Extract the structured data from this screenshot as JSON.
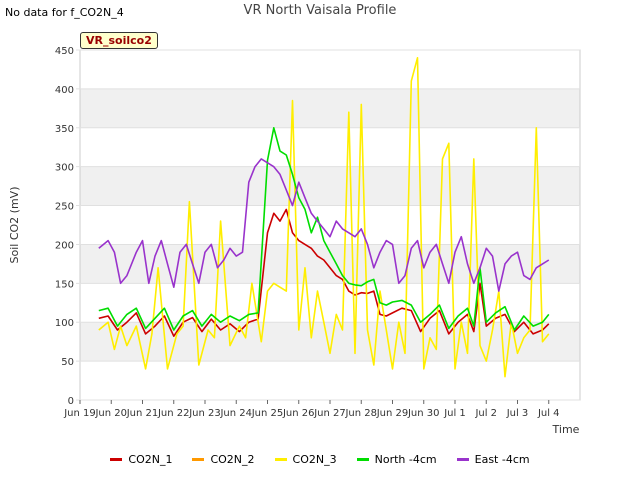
{
  "header": {
    "no_data_text": "No data for f_CO2N_4",
    "title": "VR North Vaisala Profile",
    "badge": "VR_soilco2"
  },
  "chart_data": {
    "type": "line",
    "title": "VR North Vaisala Profile",
    "xlabel": "Time",
    "ylabel": "Soil CO2 (mV)",
    "ylim": [
      0,
      450
    ],
    "xlim": [
      0,
      16
    ],
    "x_unit": "days since Jun 19",
    "grid": true,
    "legend_placement": "bottom",
    "yticks": [
      0,
      50,
      100,
      150,
      200,
      250,
      300,
      350,
      400,
      450
    ],
    "xticks": [
      {
        "x": 0,
        "label": "Jun 19"
      },
      {
        "x": 1,
        "label": "Jun 20"
      },
      {
        "x": 2,
        "label": "Jun 21"
      },
      {
        "x": 3,
        "label": "Jun 22"
      },
      {
        "x": 4,
        "label": "Jun 23"
      },
      {
        "x": 5,
        "label": "Jun 24"
      },
      {
        "x": 6,
        "label": "Jun 25"
      },
      {
        "x": 7,
        "label": "Jun 26"
      },
      {
        "x": 8,
        "label": "Jun 27"
      },
      {
        "x": 9,
        "label": "Jun 28"
      },
      {
        "x": 10,
        "label": "Jun 29"
      },
      {
        "x": 11,
        "label": "Jun 30"
      },
      {
        "x": 12,
        "label": "Jul 1"
      },
      {
        "x": 13,
        "label": "Jul 2"
      },
      {
        "x": 14,
        "label": "Jul 3"
      },
      {
        "x": 15,
        "label": "Jul 4"
      }
    ],
    "series": [
      {
        "name": "CO2N_1",
        "color": "#cc0000",
        "x": [
          0.6,
          0.9,
          1.2,
          1.5,
          1.8,
          2.1,
          2.4,
          2.7,
          3.0,
          3.3,
          3.6,
          3.9,
          4.2,
          4.5,
          4.8,
          5.1,
          5.4,
          5.7,
          6.0,
          6.2,
          6.4,
          6.6,
          6.8,
          7.0,
          7.2,
          7.4,
          7.6,
          7.8,
          8.0,
          8.2,
          8.4,
          8.6,
          8.8,
          9.0,
          9.2,
          9.4,
          9.6,
          9.8,
          10.0,
          10.3,
          10.6,
          10.9,
          11.2,
          11.5,
          11.8,
          12.1,
          12.4,
          12.6,
          12.8,
          13.0,
          13.3,
          13.6,
          13.9,
          14.2,
          14.5,
          14.8,
          15.0
        ],
        "y": [
          105,
          108,
          90,
          100,
          112,
          85,
          95,
          108,
          82,
          100,
          106,
          88,
          104,
          90,
          98,
          88,
          100,
          104,
          215,
          240,
          230,
          245,
          215,
          205,
          200,
          195,
          185,
          180,
          170,
          160,
          155,
          140,
          135,
          138,
          137,
          140,
          110,
          108,
          112,
          118,
          115,
          88,
          105,
          115,
          85,
          100,
          110,
          88,
          150,
          95,
          105,
          110,
          88,
          100,
          85,
          90,
          98
        ]
      },
      {
        "name": "CO2N_2",
        "color": "#ff9900",
        "x": [],
        "y": []
      },
      {
        "name": "CO2N_3",
        "color": "#ffee00",
        "x": [
          0.6,
          0.9,
          1.1,
          1.3,
          1.5,
          1.8,
          2.1,
          2.3,
          2.5,
          2.8,
          3.1,
          3.3,
          3.5,
          3.8,
          4.1,
          4.3,
          4.5,
          4.8,
          5.1,
          5.3,
          5.5,
          5.8,
          6.0,
          6.2,
          6.4,
          6.6,
          6.8,
          7.0,
          7.2,
          7.4,
          7.6,
          7.8,
          8.0,
          8.2,
          8.4,
          8.6,
          8.8,
          9.0,
          9.2,
          9.4,
          9.6,
          9.8,
          10.0,
          10.2,
          10.4,
          10.6,
          10.8,
          11.0,
          11.2,
          11.4,
          11.6,
          11.8,
          12.0,
          12.2,
          12.4,
          12.6,
          12.8,
          13.0,
          13.2,
          13.4,
          13.6,
          13.8,
          14.0,
          14.2,
          14.4,
          14.6,
          14.8,
          15.0
        ],
        "y": [
          90,
          100,
          65,
          95,
          70,
          95,
          40,
          85,
          170,
          40,
          85,
          95,
          255,
          45,
          90,
          80,
          230,
          70,
          95,
          80,
          150,
          75,
          140,
          150,
          145,
          140,
          385,
          90,
          170,
          80,
          140,
          100,
          60,
          110,
          90,
          370,
          60,
          380,
          90,
          45,
          140,
          90,
          40,
          100,
          60,
          410,
          440,
          40,
          80,
          65,
          310,
          330,
          40,
          100,
          60,
          310,
          70,
          50,
          90,
          140,
          30,
          100,
          60,
          80,
          90,
          350,
          75,
          85
        ]
      },
      {
        "name": "North -4cm",
        "color": "#00dd00",
        "x": [
          0.6,
          0.9,
          1.2,
          1.5,
          1.8,
          2.1,
          2.4,
          2.7,
          3.0,
          3.3,
          3.6,
          3.9,
          4.2,
          4.5,
          4.8,
          5.1,
          5.4,
          5.7,
          6.0,
          6.2,
          6.4,
          6.6,
          6.8,
          7.0,
          7.2,
          7.4,
          7.6,
          7.8,
          8.0,
          8.2,
          8.4,
          8.6,
          8.8,
          9.0,
          9.2,
          9.4,
          9.6,
          9.8,
          10.0,
          10.3,
          10.6,
          10.9,
          11.2,
          11.5,
          11.8,
          12.1,
          12.4,
          12.6,
          12.8,
          13.0,
          13.3,
          13.6,
          13.9,
          14.2,
          14.5,
          14.8,
          15.0
        ],
        "y": [
          115,
          118,
          95,
          110,
          118,
          92,
          105,
          118,
          90,
          108,
          115,
          95,
          110,
          100,
          108,
          102,
          110,
          112,
          308,
          350,
          320,
          315,
          290,
          260,
          245,
          215,
          235,
          205,
          190,
          175,
          160,
          150,
          148,
          147,
          152,
          155,
          125,
          122,
          126,
          128,
          122,
          100,
          110,
          122,
          92,
          108,
          118,
          95,
          170,
          100,
          112,
          120,
          90,
          108,
          95,
          100,
          110
        ]
      },
      {
        "name": "East -4cm",
        "color": "#9933cc",
        "x": [
          0.6,
          0.9,
          1.1,
          1.3,
          1.5,
          1.8,
          2.0,
          2.2,
          2.4,
          2.6,
          2.8,
          3.0,
          3.2,
          3.4,
          3.6,
          3.8,
          4.0,
          4.2,
          4.4,
          4.6,
          4.8,
          5.0,
          5.2,
          5.4,
          5.6,
          5.8,
          6.0,
          6.2,
          6.4,
          6.6,
          6.8,
          7.0,
          7.2,
          7.4,
          7.6,
          7.8,
          8.0,
          8.2,
          8.4,
          8.6,
          8.8,
          9.0,
          9.2,
          9.4,
          9.6,
          9.8,
          10.0,
          10.2,
          10.4,
          10.6,
          10.8,
          11.0,
          11.2,
          11.4,
          11.6,
          11.8,
          12.0,
          12.2,
          12.4,
          12.6,
          12.8,
          13.0,
          13.2,
          13.4,
          13.6,
          13.8,
          14.0,
          14.2,
          14.4,
          14.6,
          14.8,
          15.0
        ],
        "y": [
          195,
          205,
          190,
          150,
          160,
          190,
          205,
          150,
          185,
          205,
          175,
          145,
          190,
          200,
          175,
          150,
          190,
          200,
          170,
          180,
          195,
          185,
          190,
          280,
          300,
          310,
          305,
          300,
          290,
          270,
          250,
          280,
          260,
          240,
          230,
          220,
          210,
          230,
          220,
          215,
          210,
          220,
          200,
          170,
          190,
          205,
          200,
          150,
          160,
          195,
          205,
          170,
          190,
          200,
          175,
          150,
          190,
          210,
          175,
          150,
          170,
          195,
          185,
          140,
          175,
          185,
          190,
          160,
          155,
          170,
          175,
          180
        ]
      }
    ]
  }
}
